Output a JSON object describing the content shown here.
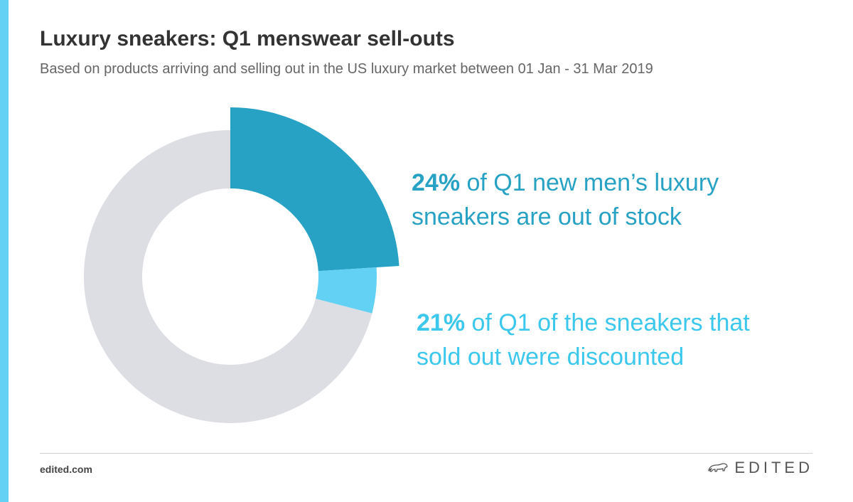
{
  "title": "Luxury sneakers: Q1 menswear sell-outs",
  "subtitle": "Based on products arriving and selling out in the US luxury market between 01 Jan - 31 Mar 2019",
  "colors": {
    "accent_dark": "#27a2c4",
    "accent_light": "#62d1f3",
    "remainder": "#dddde4",
    "sidebar": "#62d1f3"
  },
  "chart_data": {
    "type": "pie",
    "style": "donut",
    "slices": [
      {
        "label": "24% of Q1 new men’s luxury sneakers are out of stock",
        "value": 24,
        "color": "#27a2c4",
        "exploded": true
      },
      {
        "label": "21% of Q1 of the sneakers that sold out were discounted",
        "value": 5.04,
        "color": "#62d1f3",
        "note": "21% of the 24% sold-out share"
      },
      {
        "label": "",
        "value": 70.96,
        "color": "#dddde4"
      }
    ]
  },
  "annotations": [
    {
      "lead": "24%",
      "line1": " of Q1 new men’s luxury",
      "line2": "sneakers are out of stock",
      "color": "#27a2c4"
    },
    {
      "lead": "21%",
      "line1": " of Q1 of the sneakers that",
      "line2": "sold out were discounted",
      "color": "#3cc7ec"
    }
  ],
  "footer": {
    "url": "edited.com",
    "brand": "EDITED",
    "logo_icon": "polar-bear-icon"
  }
}
